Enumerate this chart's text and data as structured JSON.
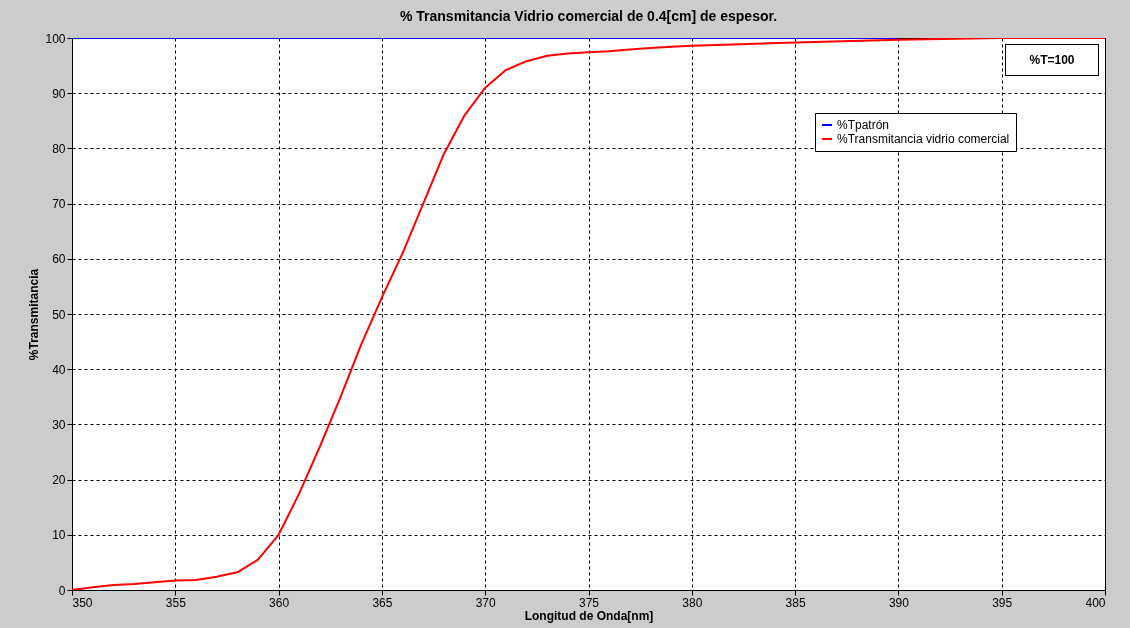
{
  "chart_data": {
    "type": "line",
    "title": "% Transmitancia Vidrio comercial de 0.4[cm] de espesor.",
    "xlabel": "Longitud de Onda[nm]",
    "ylabel": "%Transmitancia",
    "x": [
      350,
      351,
      352,
      353,
      354,
      355,
      356,
      357,
      358,
      359,
      360,
      361,
      362,
      363,
      364,
      365,
      366,
      367,
      368,
      369,
      370,
      371,
      372,
      373,
      374,
      375,
      376,
      377,
      378,
      379,
      380,
      385,
      390,
      395,
      400
    ],
    "series": [
      {
        "name": "%Tpatrón",
        "color": "#0000ff",
        "values": [
          100,
          100,
          100,
          100,
          100,
          100,
          100,
          100,
          100,
          100,
          100,
          100,
          100,
          100,
          100,
          100,
          100,
          100,
          100,
          100,
          100,
          100,
          100,
          100,
          100,
          100,
          100,
          100,
          100,
          100,
          100,
          100,
          100,
          null,
          null
        ]
      },
      {
        "name": "%Transmitancia vidrio comercial",
        "color": "#ff0000",
        "values": [
          0,
          0.5,
          0.9,
          1.1,
          1.4,
          1.7,
          1.8,
          2.4,
          3.2,
          5.5,
          10,
          17.5,
          26,
          35,
          44.5,
          53,
          61,
          70,
          79,
          86,
          91,
          94.2,
          95.8,
          96.8,
          97.2,
          97.4,
          97.6,
          97.9,
          98.2,
          98.4,
          98.6,
          99.2,
          99.7,
          100,
          100
        ]
      }
    ],
    "xlim": [
      350,
      400
    ],
    "xticks": [
      350,
      355,
      360,
      365,
      370,
      375,
      380,
      385,
      390,
      395,
      400
    ],
    "ylim": [
      0,
      100
    ],
    "yticks": [
      0,
      10,
      20,
      30,
      40,
      50,
      60,
      70,
      80,
      90,
      100
    ],
    "grid": true,
    "legend": "top right",
    "line_style": "solid",
    "annotations": [
      "%T=100"
    ]
  }
}
